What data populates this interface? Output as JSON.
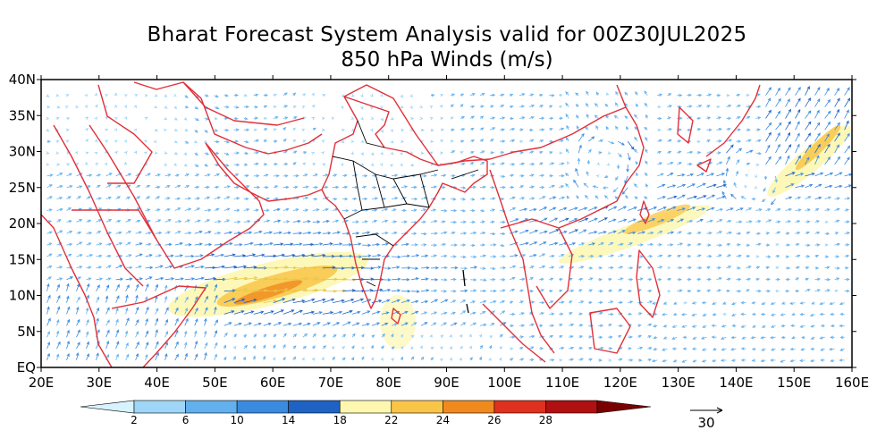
{
  "title": "Bharat Forecast System Analysis valid for 00Z30JUL2025",
  "subtitle": "850 hPa Winds (m/s)",
  "map": {
    "projection": "equirectangular",
    "lon_range": [
      20,
      160
    ],
    "lat_range": [
      0,
      40
    ],
    "lon_ticks": [
      "20E",
      "30E",
      "40E",
      "50E",
      "60E",
      "70E",
      "80E",
      "90E",
      "100E",
      "110E",
      "120E",
      "130E",
      "140E",
      "150E",
      "160E"
    ],
    "lat_ticks": [
      "EQ",
      "5N",
      "10N",
      "15N",
      "20N",
      "25N",
      "30N",
      "35N",
      "40N"
    ],
    "country_border_color": "#e0303a",
    "state_border_color": "#000000",
    "wind_field": "850 hPa wind vectors, monsoon westerlies over Arabian Sea and Bay of Bengal, low-level jet ~10-15N 45-75E"
  },
  "colorbar": {
    "levels": [
      "2",
      "6",
      "10",
      "14",
      "18",
      "22",
      "24",
      "26",
      "28"
    ],
    "colors": [
      "#d6f3ff",
      "#9fd6f7",
      "#63b0ee",
      "#3a8be0",
      "#1e62c4",
      "#fdf7b0",
      "#f9c548",
      "#f08a1e",
      "#e0301e",
      "#b01010",
      "#7a0000"
    ]
  },
  "reference_vector": {
    "label": "30"
  }
}
